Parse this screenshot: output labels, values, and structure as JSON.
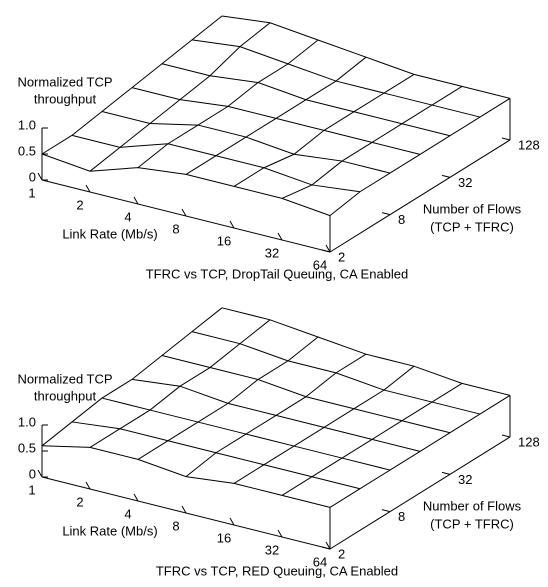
{
  "chart_data": [
    {
      "type": "surface",
      "title": "TFRC vs TCP, DropTail Queuing, CA Enabled",
      "xlabel": "Link Rate (Mb/s)",
      "ylabel": [
        "Number of Flows",
        "(TCP + TFRC)"
      ],
      "zlabel": [
        "Normalized TCP",
        "throughput"
      ],
      "x": [
        1,
        2,
        4,
        8,
        16,
        32,
        64
      ],
      "y": [
        2,
        4,
        8,
        16,
        32,
        64,
        128
      ],
      "xlim": [
        1,
        64
      ],
      "ylim": [
        2,
        128
      ],
      "zlim": [
        0,
        1
      ],
      "xticks": [
        1,
        2,
        4,
        8,
        16,
        32,
        64
      ],
      "yticks": [
        2,
        8,
        32,
        128
      ],
      "zticks": [
        0,
        0.5,
        {
          "value": 1,
          "label": "1.0"
        }
      ],
      "xlog": true,
      "ylog": true,
      "color": "#000000",
      "z": [
        [
          0.5,
          0.4,
          0.7,
          0.8,
          0.8,
          0.8,
          0.7
        ],
        [
          0.5,
          0.5,
          0.8,
          0.8,
          0.8,
          0.7,
          0.8
        ],
        [
          0.6,
          0.6,
          0.8,
          0.8,
          0.7,
          0.8,
          0.8
        ],
        [
          0.7,
          0.7,
          0.8,
          0.8,
          0.8,
          0.8,
          0.8
        ],
        [
          0.8,
          0.8,
          0.9,
          0.8,
          0.8,
          0.8,
          0.8
        ],
        [
          0.9,
          1.0,
          0.9,
          0.8,
          0.8,
          0.8,
          0.8
        ],
        [
          1.0,
          1.1,
          1.0,
          0.9,
          0.8,
          0.8,
          0.8
        ]
      ]
    },
    {
      "type": "surface",
      "title": "TFRC vs TCP, RED Queuing, CA Enabled",
      "xlabel": "Link Rate (Mb/s)",
      "ylabel": [
        "Number of Flows",
        "(TCP + TFRC)"
      ],
      "zlabel": [
        "Normalized TCP",
        "throughput"
      ],
      "x": [
        1,
        2,
        4,
        8,
        16,
        32,
        64
      ],
      "y": [
        2,
        4,
        8,
        16,
        32,
        64,
        128
      ],
      "xlim": [
        1,
        64
      ],
      "ylim": [
        2,
        128
      ],
      "zlim": [
        0,
        1
      ],
      "xticks": [
        1,
        2,
        4,
        8,
        16,
        32,
        64
      ],
      "yticks": [
        2,
        8,
        32,
        128
      ],
      "zticks": [
        0,
        0.5,
        {
          "value": 1,
          "label": "1.0"
        }
      ],
      "xlog": true,
      "ylog": true,
      "color": "#000000",
      "z": [
        [
          0.6,
          0.8,
          0.8,
          0.7,
          0.8,
          0.8,
          0.8
        ],
        [
          0.7,
          0.8,
          0.8,
          0.8,
          0.8,
          0.8,
          0.8
        ],
        [
          0.8,
          0.8,
          0.8,
          0.8,
          0.8,
          0.8,
          0.8
        ],
        [
          0.8,
          0.9,
          0.8,
          0.8,
          0.8,
          0.8,
          0.8
        ],
        [
          0.9,
          0.9,
          0.9,
          0.8,
          0.8,
          0.8,
          0.8
        ],
        [
          1.0,
          1.0,
          0.9,
          0.9,
          0.8,
          0.8,
          0.8
        ],
        [
          1.1,
          1.1,
          1.0,
          0.9,
          0.9,
          0.8,
          0.8
        ]
      ]
    }
  ]
}
